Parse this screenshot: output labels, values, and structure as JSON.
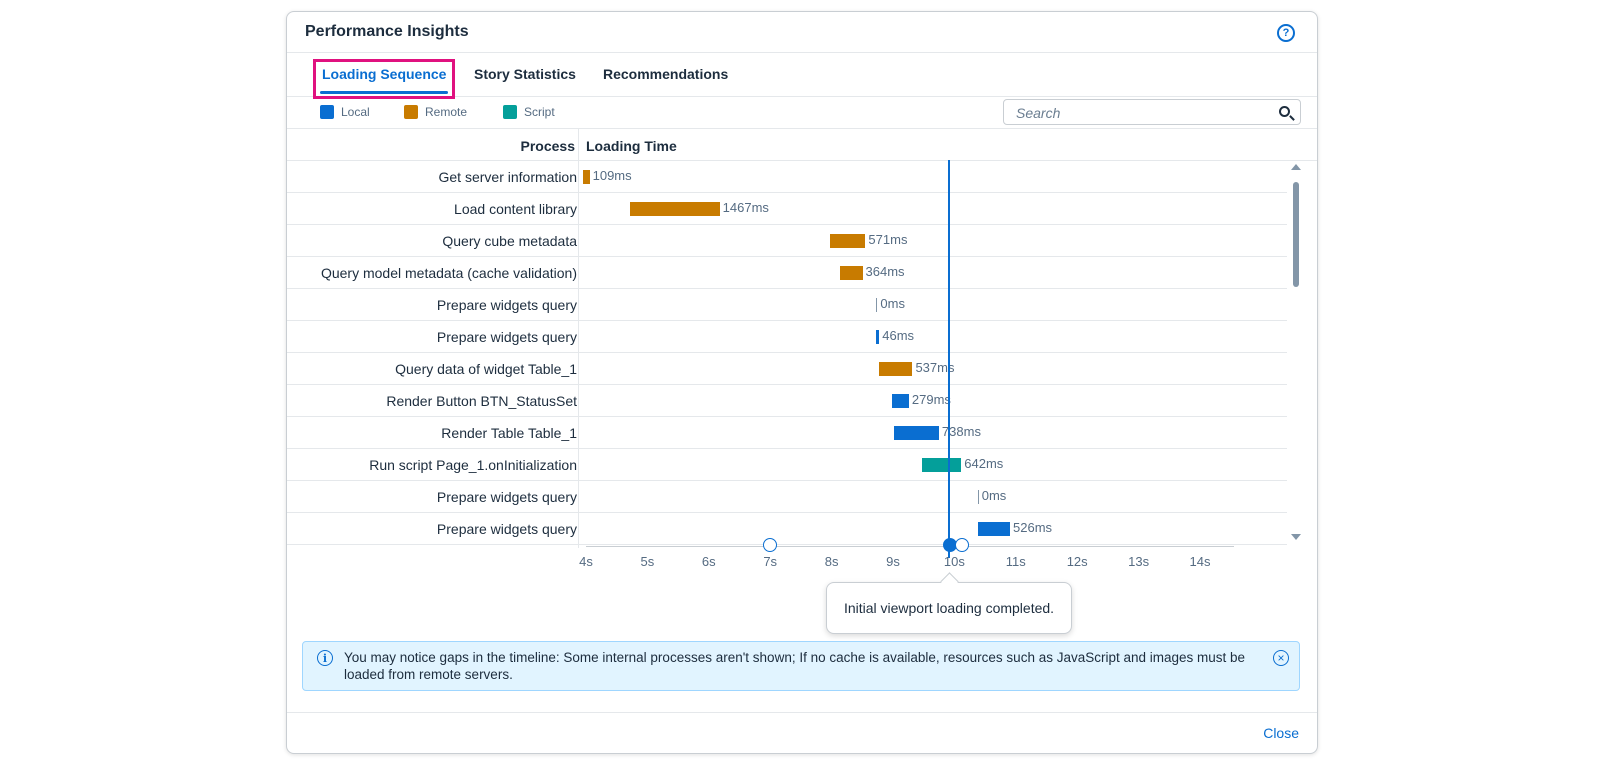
{
  "dialog": {
    "title": "Performance Insights",
    "help_icon": "help-icon",
    "close_label": "Close"
  },
  "tabs": [
    {
      "label": "Loading Sequence",
      "active": true
    },
    {
      "label": "Story Statistics",
      "active": false
    },
    {
      "label": "Recommendations",
      "active": false
    }
  ],
  "legend": [
    {
      "label": "Local",
      "color": "#0a6ed1"
    },
    {
      "label": "Remote",
      "color": "#c87b00"
    },
    {
      "label": "Script",
      "color": "#049f9a"
    }
  ],
  "search": {
    "placeholder": "Search"
  },
  "columns": {
    "process": "Process",
    "loading_time": "Loading Time"
  },
  "chart_data": {
    "type": "gantt",
    "x_unit": "s",
    "xlim": [
      4,
      14.5
    ],
    "x_ticks": [
      "4s",
      "5s",
      "6s",
      "7s",
      "8s",
      "9s",
      "10s",
      "11s",
      "12s",
      "13s",
      "14s"
    ],
    "marker_x": 9.9,
    "rows": [
      {
        "process": "Get server information",
        "start": 3.95,
        "duration_ms": 109,
        "label": "109ms",
        "type": "Remote"
      },
      {
        "process": "Load content library",
        "start": 4.71,
        "duration_ms": 1467,
        "label": "1467ms",
        "type": "Remote"
      },
      {
        "process": "Query cube metadata",
        "start": 7.98,
        "duration_ms": 571,
        "label": "571ms",
        "type": "Remote"
      },
      {
        "process": "Query model metadata (cache validation)",
        "start": 8.14,
        "duration_ms": 364,
        "label": "364ms",
        "type": "Remote"
      },
      {
        "process": "Prepare widgets query",
        "start": 8.73,
        "duration_ms": 0,
        "label": "0ms",
        "type": "Local"
      },
      {
        "process": "Prepare widgets query",
        "start": 8.73,
        "duration_ms": 46,
        "label": "46ms",
        "type": "Local"
      },
      {
        "process": "Query data of widget Table_1",
        "start": 8.78,
        "duration_ms": 537,
        "label": "537ms",
        "type": "Remote"
      },
      {
        "process": "Render Button BTN_StatusSet",
        "start": 8.98,
        "duration_ms": 279,
        "label": "279ms",
        "type": "Local"
      },
      {
        "process": "Render Table Table_1",
        "start": 9.01,
        "duration_ms": 738,
        "label": "738ms",
        "type": "Local"
      },
      {
        "process": "Run script Page_1.onInitialization",
        "start": 9.47,
        "duration_ms": 642,
        "label": "642ms",
        "type": "Script"
      },
      {
        "process": "Prepare widgets query",
        "start": 10.38,
        "duration_ms": 0,
        "label": "0ms",
        "type": "Local"
      },
      {
        "process": "Prepare widgets query",
        "start": 10.38,
        "duration_ms": 526,
        "label": "526ms",
        "type": "Local"
      }
    ]
  },
  "tooltip": {
    "text": "Initial viewport loading completed."
  },
  "info": {
    "text": "You may notice gaps in the timeline: Some internal processes aren't shown; If no cache is available, resources such as JavaScript and images must be loaded from remote servers."
  }
}
